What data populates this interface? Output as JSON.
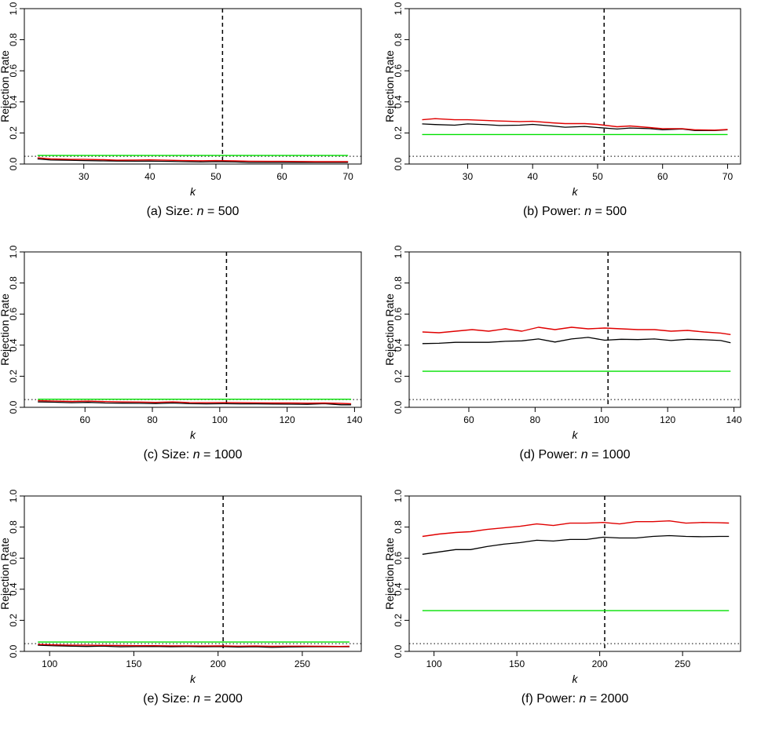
{
  "colors": {
    "red": "#e00000",
    "black": "#000000",
    "green": "#00e000",
    "dotted": "#000000",
    "dashed": "#000000"
  },
  "chart_data": [
    {
      "type": "line",
      "caption": {
        "prefix": "(a) Size: ",
        "var": "n",
        "suffix": " = 500"
      },
      "xlabel": "k",
      "ylabel": "Rejection Rate",
      "xlim": [
        21,
        72
      ],
      "ylim": [
        0,
        1
      ],
      "xticks": [
        30,
        40,
        50,
        60,
        70
      ],
      "xtick_labels": [
        "30",
        "40",
        "50",
        "60",
        "70"
      ],
      "yticks": [
        0,
        0.2,
        0.4,
        0.6,
        0.8,
        1
      ],
      "ytick_labels": [
        "0.0",
        "0.2",
        "0.4",
        "0.6",
        "0.8",
        "1.0"
      ],
      "x": [
        23,
        25,
        28,
        30,
        33,
        35,
        38,
        40,
        43,
        45,
        48,
        50,
        53,
        55,
        58,
        60,
        63,
        65,
        68,
        70
      ],
      "series": [
        {
          "name": "red",
          "color": "red",
          "values": [
            0.04,
            0.033,
            0.03,
            0.03,
            0.028,
            0.025,
            0.026,
            0.027,
            0.024,
            0.022,
            0.021,
            0.022,
            0.02,
            0.018,
            0.017,
            0.017,
            0.016,
            0.015,
            0.015,
            0.015
          ]
        },
        {
          "name": "black",
          "color": "black",
          "values": [
            0.033,
            0.026,
            0.024,
            0.022,
            0.02,
            0.019,
            0.018,
            0.018,
            0.017,
            0.015,
            0.013,
            0.015,
            0.013,
            0.01,
            0.01,
            0.01,
            0.01,
            0.01,
            0.01,
            0.01
          ]
        },
        {
          "name": "green",
          "color": "green",
          "values": [
            0.055,
            0.055,
            0.055,
            0.055,
            0.055,
            0.055,
            0.055,
            0.055,
            0.055,
            0.055,
            0.055,
            0.055,
            0.055,
            0.055,
            0.055,
            0.055,
            0.055,
            0.055,
            0.055,
            0.055
          ]
        }
      ],
      "hline": 0.05,
      "vline": 51
    },
    {
      "type": "line",
      "caption": {
        "prefix": "(b) Power: ",
        "var": "n",
        "suffix": " = 500"
      },
      "xlabel": "k",
      "ylabel": "Rejection Rate",
      "xlim": [
        21,
        72
      ],
      "ylim": [
        0,
        1
      ],
      "xticks": [
        30,
        40,
        50,
        60,
        70
      ],
      "xtick_labels": [
        "30",
        "40",
        "50",
        "60",
        "70"
      ],
      "yticks": [
        0,
        0.2,
        0.4,
        0.6,
        0.8,
        1
      ],
      "ytick_labels": [
        "0.0",
        "0.2",
        "0.4",
        "0.6",
        "0.8",
        "1.0"
      ],
      "x": [
        23,
        25,
        28,
        30,
        33,
        35,
        38,
        40,
        43,
        45,
        48,
        50,
        53,
        55,
        58,
        60,
        63,
        65,
        68,
        70
      ],
      "series": [
        {
          "name": "red",
          "color": "red",
          "values": [
            0.285,
            0.292,
            0.285,
            0.285,
            0.28,
            0.277,
            0.273,
            0.275,
            0.265,
            0.26,
            0.26,
            0.255,
            0.24,
            0.245,
            0.235,
            0.228,
            0.228,
            0.22,
            0.218,
            0.222
          ]
        },
        {
          "name": "black",
          "color": "black",
          "values": [
            0.258,
            0.254,
            0.25,
            0.258,
            0.253,
            0.248,
            0.25,
            0.255,
            0.245,
            0.237,
            0.242,
            0.235,
            0.225,
            0.232,
            0.228,
            0.22,
            0.225,
            0.215,
            0.215,
            0.22
          ]
        },
        {
          "name": "green",
          "color": "green",
          "values": [
            0.19,
            0.19,
            0.19,
            0.19,
            0.19,
            0.19,
            0.19,
            0.19,
            0.19,
            0.19,
            0.19,
            0.19,
            0.19,
            0.19,
            0.19,
            0.19,
            0.19,
            0.19,
            0.19,
            0.19
          ]
        }
      ],
      "hline": 0.05,
      "vline": 51
    },
    {
      "type": "line",
      "caption": {
        "prefix": "(c) Size: ",
        "var": "n",
        "suffix": " = 1000"
      },
      "xlabel": "k",
      "ylabel": "Rejection Rate",
      "xlim": [
        42,
        142
      ],
      "ylim": [
        0,
        1
      ],
      "xticks": [
        60,
        80,
        100,
        120,
        140
      ],
      "xtick_labels": [
        "60",
        "80",
        "100",
        "120",
        "140"
      ],
      "yticks": [
        0,
        0.2,
        0.4,
        0.6,
        0.8,
        1
      ],
      "ytick_labels": [
        "0.0",
        "0.2",
        "0.4",
        "0.6",
        "0.8",
        "1.0"
      ],
      "x": [
        46,
        51,
        56,
        61,
        66,
        71,
        76,
        81,
        86,
        91,
        96,
        101,
        106,
        111,
        116,
        121,
        126,
        131,
        136,
        139
      ],
      "series": [
        {
          "name": "red",
          "color": "red",
          "values": [
            0.043,
            0.04,
            0.038,
            0.04,
            0.037,
            0.035,
            0.034,
            0.032,
            0.035,
            0.031,
            0.03,
            0.031,
            0.03,
            0.029,
            0.028,
            0.028,
            0.027,
            0.028,
            0.025,
            0.023
          ]
        },
        {
          "name": "black",
          "color": "black",
          "values": [
            0.035,
            0.033,
            0.03,
            0.032,
            0.028,
            0.027,
            0.026,
            0.024,
            0.028,
            0.023,
            0.022,
            0.023,
            0.022,
            0.022,
            0.021,
            0.02,
            0.019,
            0.023,
            0.016,
            0.016
          ]
        },
        {
          "name": "green",
          "color": "green",
          "values": [
            0.052,
            0.052,
            0.052,
            0.052,
            0.052,
            0.052,
            0.052,
            0.052,
            0.052,
            0.052,
            0.052,
            0.052,
            0.052,
            0.052,
            0.052,
            0.052,
            0.052,
            0.052,
            0.052,
            0.052
          ]
        }
      ],
      "hline": 0.05,
      "vline": 102
    },
    {
      "type": "line",
      "caption": {
        "prefix": "(d) Power: ",
        "var": "n",
        "suffix": " = 1000"
      },
      "xlabel": "k",
      "ylabel": "Rejection Rate",
      "xlim": [
        42,
        142
      ],
      "ylim": [
        0,
        1
      ],
      "xticks": [
        60,
        80,
        100,
        120,
        140
      ],
      "xtick_labels": [
        "60",
        "80",
        "100",
        "120",
        "140"
      ],
      "yticks": [
        0,
        0.2,
        0.4,
        0.6,
        0.8,
        1
      ],
      "ytick_labels": [
        "0.0",
        "0.2",
        "0.4",
        "0.6",
        "0.8",
        "1.0"
      ],
      "x": [
        46,
        51,
        56,
        61,
        66,
        71,
        76,
        81,
        86,
        91,
        96,
        101,
        106,
        111,
        116,
        121,
        126,
        131,
        136,
        139
      ],
      "series": [
        {
          "name": "red",
          "color": "red",
          "values": [
            0.485,
            0.48,
            0.49,
            0.5,
            0.49,
            0.505,
            0.49,
            0.515,
            0.5,
            0.515,
            0.505,
            0.51,
            0.505,
            0.5,
            0.5,
            0.49,
            0.495,
            0.485,
            0.478,
            0.468
          ]
        },
        {
          "name": "black",
          "color": "black",
          "values": [
            0.41,
            0.412,
            0.418,
            0.418,
            0.418,
            0.425,
            0.428,
            0.44,
            0.42,
            0.44,
            0.45,
            0.432,
            0.438,
            0.436,
            0.44,
            0.43,
            0.438,
            0.435,
            0.43,
            0.415
          ]
        },
        {
          "name": "green",
          "color": "green",
          "values": [
            0.232,
            0.232,
            0.232,
            0.232,
            0.232,
            0.232,
            0.232,
            0.232,
            0.232,
            0.232,
            0.232,
            0.232,
            0.232,
            0.232,
            0.232,
            0.232,
            0.232,
            0.232,
            0.232,
            0.232
          ]
        }
      ],
      "hline": 0.05,
      "vline": 102
    },
    {
      "type": "line",
      "caption": {
        "prefix": "(e) Size: ",
        "var": "n",
        "suffix": " = 2000"
      },
      "xlabel": "k",
      "ylabel": "Rejection Rate",
      "xlim": [
        85,
        285
      ],
      "ylim": [
        0,
        1
      ],
      "xticks": [
        100,
        150,
        200,
        250
      ],
      "xtick_labels": [
        "100",
        "150",
        "200",
        "250"
      ],
      "yticks": [
        0,
        0.2,
        0.4,
        0.6,
        0.8,
        1
      ],
      "ytick_labels": [
        "0.0",
        "0.2",
        "0.4",
        "0.6",
        "0.8",
        "1.0"
      ],
      "x": [
        93,
        103,
        113,
        122,
        132,
        142,
        152,
        162,
        172,
        182,
        192,
        202,
        212,
        222,
        232,
        242,
        252,
        262,
        272,
        278
      ],
      "series": [
        {
          "name": "red",
          "color": "red",
          "values": [
            0.045,
            0.042,
            0.04,
            0.04,
            0.039,
            0.038,
            0.037,
            0.037,
            0.036,
            0.036,
            0.035,
            0.036,
            0.034,
            0.035,
            0.033,
            0.034,
            0.034,
            0.033,
            0.032,
            0.033
          ]
        },
        {
          "name": "black",
          "color": "black",
          "values": [
            0.04,
            0.036,
            0.034,
            0.032,
            0.034,
            0.03,
            0.031,
            0.032,
            0.03,
            0.031,
            0.03,
            0.031,
            0.028,
            0.03,
            0.026,
            0.029,
            0.03,
            0.03,
            0.03,
            0.03
          ]
        },
        {
          "name": "green",
          "color": "green",
          "values": [
            0.06,
            0.06,
            0.06,
            0.06,
            0.06,
            0.06,
            0.06,
            0.06,
            0.06,
            0.06,
            0.06,
            0.06,
            0.06,
            0.06,
            0.06,
            0.06,
            0.06,
            0.06,
            0.06,
            0.06
          ]
        }
      ],
      "hline": 0.05,
      "vline": 203
    },
    {
      "type": "line",
      "caption": {
        "prefix": "(f) Power: ",
        "var": "n",
        "suffix": " = 2000"
      },
      "xlabel": "k",
      "ylabel": "Rejection Rate",
      "xlim": [
        85,
        285
      ],
      "ylim": [
        0,
        1
      ],
      "xticks": [
        100,
        150,
        200,
        250
      ],
      "xtick_labels": [
        "100",
        "150",
        "200",
        "250"
      ],
      "yticks": [
        0,
        0.2,
        0.4,
        0.6,
        0.8,
        1
      ],
      "ytick_labels": [
        "0.0",
        "0.2",
        "0.4",
        "0.6",
        "0.8",
        "1.0"
      ],
      "x": [
        93,
        103,
        113,
        122,
        132,
        142,
        152,
        162,
        172,
        182,
        192,
        202,
        212,
        222,
        232,
        242,
        252,
        262,
        272,
        278
      ],
      "series": [
        {
          "name": "red",
          "color": "red",
          "values": [
            0.74,
            0.755,
            0.765,
            0.77,
            0.785,
            0.795,
            0.805,
            0.82,
            0.81,
            0.825,
            0.825,
            0.83,
            0.82,
            0.835,
            0.835,
            0.84,
            0.825,
            0.83,
            0.828,
            0.826
          ]
        },
        {
          "name": "black",
          "color": "black",
          "values": [
            0.625,
            0.64,
            0.655,
            0.655,
            0.675,
            0.69,
            0.7,
            0.715,
            0.71,
            0.72,
            0.72,
            0.735,
            0.73,
            0.73,
            0.74,
            0.745,
            0.74,
            0.738,
            0.74,
            0.74
          ]
        },
        {
          "name": "green",
          "color": "green",
          "values": [
            0.262,
            0.262,
            0.262,
            0.262,
            0.262,
            0.262,
            0.262,
            0.262,
            0.262,
            0.262,
            0.262,
            0.262,
            0.262,
            0.262,
            0.262,
            0.262,
            0.262,
            0.262,
            0.262,
            0.262
          ]
        }
      ],
      "hline": 0.05,
      "vline": 203
    }
  ]
}
